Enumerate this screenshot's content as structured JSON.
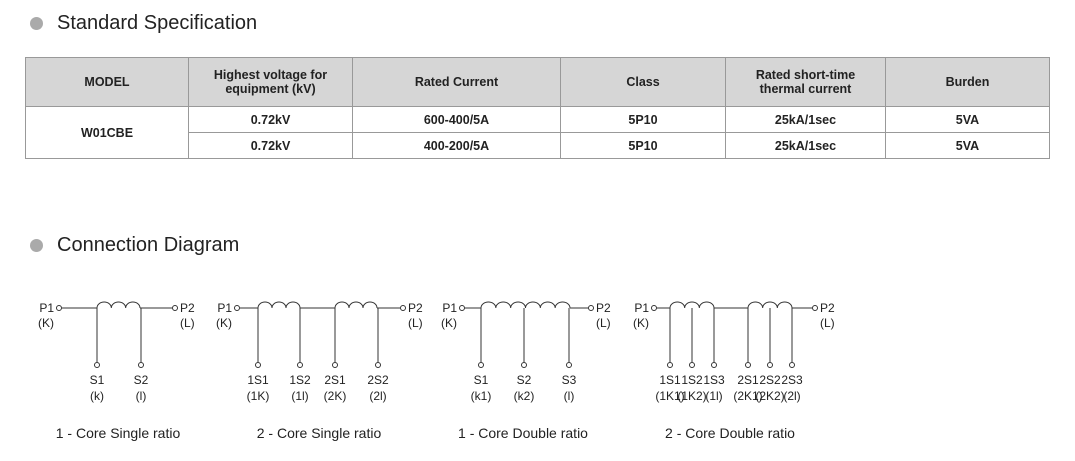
{
  "sections": [
    {
      "title": "Standard Specification"
    },
    {
      "title": "Connection Diagram"
    }
  ],
  "table": {
    "header": [
      "MODEL",
      [
        "Highest voltage for",
        "equipment (kV)"
      ],
      "Rated Current",
      "Class",
      [
        "Rated short-time",
        "thermal current"
      ],
      "Burden"
    ],
    "model": "W01CBE",
    "rows": [
      [
        "0.72kV",
        "600-400/5A",
        "5P10",
        "25kA/1sec",
        "5VA"
      ],
      [
        "0.72kV",
        "400-200/5A",
        "5P10",
        "25kA/1sec",
        "5VA"
      ]
    ]
  },
  "diagrams": [
    {
      "p1": "P1",
      "k": "(K)",
      "p2": "P2",
      "l": "(L)",
      "terminals": [
        [
          "S1",
          "(k)"
        ],
        [
          "S2",
          "(l)"
        ]
      ],
      "caption": "1 - Core  Single ratio"
    },
    {
      "p1": "P1",
      "k": "(K)",
      "p2": "P2",
      "l": "(L)",
      "terminals": [
        [
          "1S1",
          "(1K)"
        ],
        [
          "1S2",
          "(1l)"
        ],
        [
          "2S1",
          "(2K)"
        ],
        [
          "2S2",
          "(2l)"
        ]
      ],
      "caption": "2 - Core  Single ratio"
    },
    {
      "p1": "P1",
      "k": "(K)",
      "p2": "P2",
      "l": "(L)",
      "terminals": [
        [
          "S1",
          "(k1)"
        ],
        [
          "S2",
          "(k2)"
        ],
        [
          "S3",
          "(l)"
        ]
      ],
      "caption": "1 - Core  Double ratio"
    },
    {
      "p1": "P1",
      "k": "(K)",
      "p2": "P2",
      "l": "(L)",
      "terminals": [
        [
          "1S1",
          "(1K1)"
        ],
        [
          "1S2",
          "(1K2)"
        ],
        [
          "1S3",
          "(1l)"
        ],
        [
          "2S1",
          "(2K1)"
        ],
        [
          "2S2",
          "(2K2)"
        ],
        [
          "2S3",
          "(2l)"
        ]
      ],
      "caption": "2 - Core  Double ratio"
    }
  ]
}
